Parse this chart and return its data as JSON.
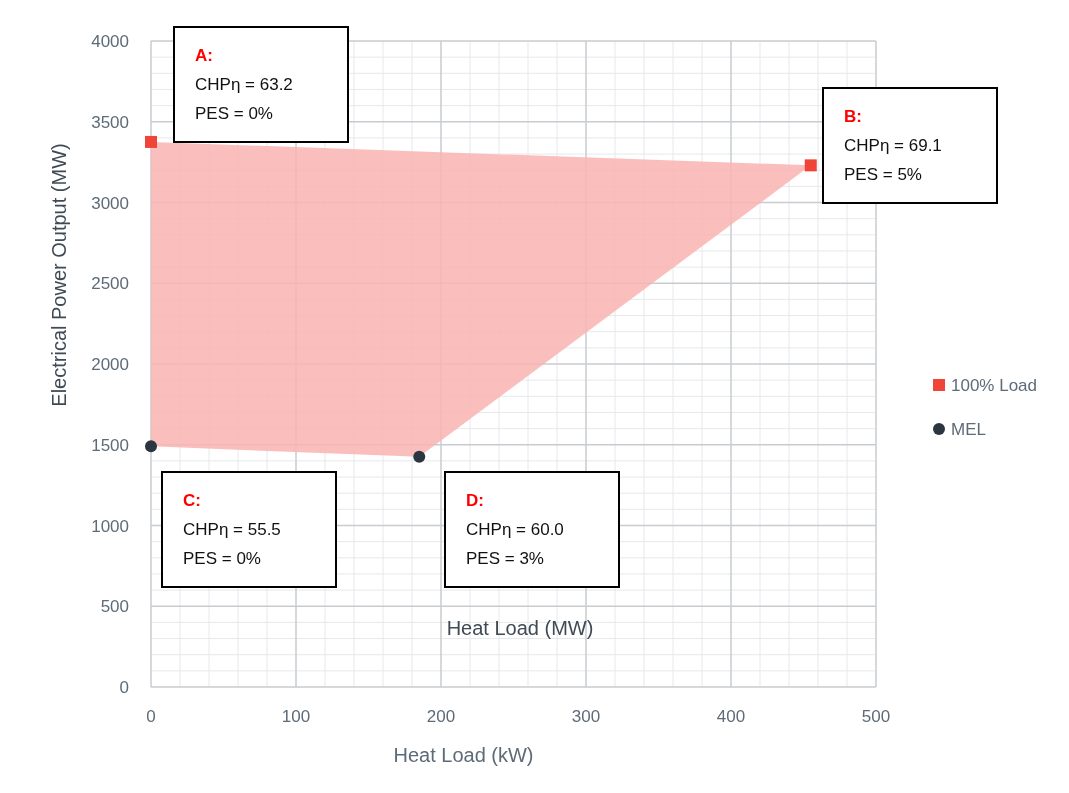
{
  "chart_data": {
    "type": "scatter",
    "xlabel": "Heat Load (kW)",
    "ylabel": "Electrical Power Output (MW)",
    "xlim": [
      0,
      500
    ],
    "xticks": [
      0,
      100,
      200,
      300,
      400,
      500
    ],
    "ylim": [
      0,
      4000
    ],
    "yticks": [
      0,
      500,
      1000,
      1500,
      2000,
      2500,
      3000,
      3500,
      4000
    ],
    "grid": true,
    "legend": "right",
    "series": [
      {
        "type": "area",
        "color": "#f9b4b1",
        "x": [
          0,
          455,
          185,
          0
        ],
        "values": [
          3375,
          3230,
          1425,
          1490
        ]
      },
      {
        "name": "100% Load",
        "color": "#f04438",
        "marker": "square",
        "x": [
          0,
          455
        ],
        "values": [
          3375,
          3230
        ]
      },
      {
        "name": "MEL",
        "color": "#2b3640",
        "marker": "circle",
        "x": [
          0,
          185
        ],
        "values": [
          1490,
          1425
        ]
      }
    ],
    "annotations": [
      "A:\nCHPη = 63.2\nPES = 0%",
      "B:\nCHPη = 69.1\nPES = 5%",
      "C:\nCHPη = 55.5\nPES = 0%",
      "D:\nCHPη = 60.0\nPES = 3%",
      "Heat Load (MW)"
    ]
  }
}
